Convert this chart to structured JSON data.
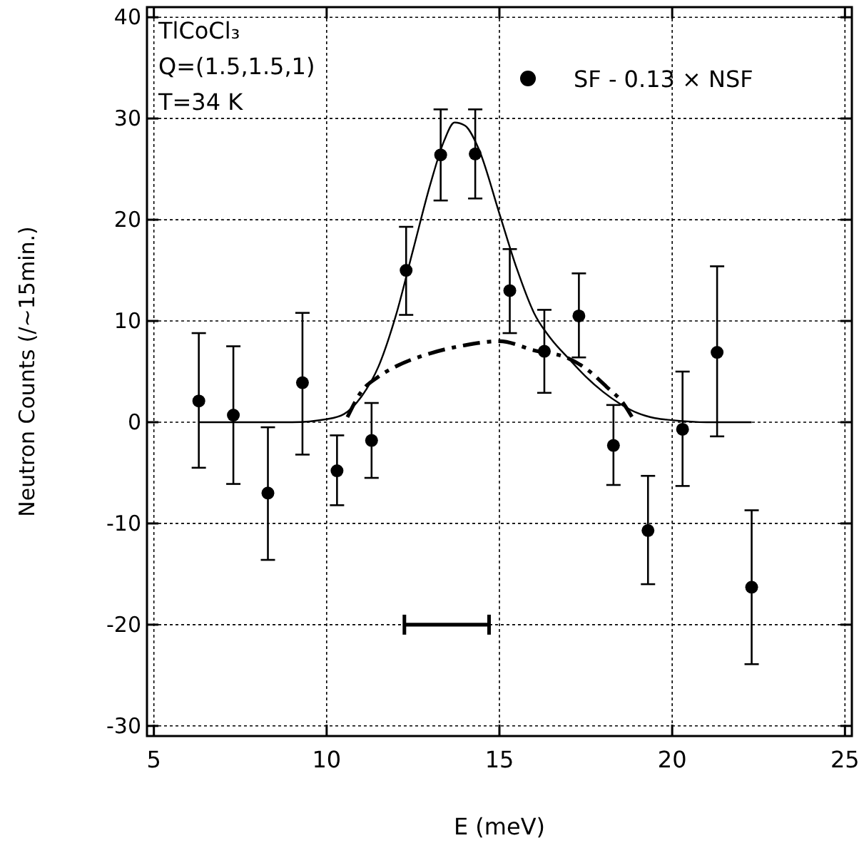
{
  "chart_data": {
    "type": "scatter",
    "xlabel": "E (meV)",
    "ylabel": "Neutron Counts (/~15min.)",
    "annotations": [
      "TlCoCl₃",
      "Q=(1.5,1.5,1)",
      "T=34 K"
    ],
    "xlim": [
      4.8,
      25.2
    ],
    "ylim": [
      -31,
      41
    ],
    "xticks": [
      5,
      10,
      15,
      20,
      25
    ],
    "yticks": [
      -30,
      -20,
      -10,
      0,
      10,
      20,
      30,
      40
    ],
    "grid": true,
    "legend": "top right",
    "series": [
      {
        "name": "SF - 0.13 × NSF",
        "color": "#000000",
        "marker": "circle",
        "x": [
          6.3,
          7.3,
          8.3,
          9.3,
          10.3,
          11.3,
          12.3,
          13.3,
          14.3,
          15.3,
          16.3,
          17.3,
          18.3,
          19.3,
          20.3,
          21.3,
          22.3
        ],
        "values": [
          2.1,
          0.7,
          -7.0,
          3.9,
          -4.8,
          -1.8,
          15.0,
          26.4,
          26.5,
          13.0,
          7.0,
          10.5,
          -2.3,
          -10.7,
          -0.7,
          6.9,
          -16.3
        ],
        "errors": [
          [
            -4.5,
            8.8
          ],
          [
            -6.1,
            7.5
          ],
          [
            -13.6,
            -0.5
          ],
          [
            -3.2,
            10.8
          ],
          [
            -8.2,
            -1.3
          ],
          [
            -5.5,
            1.9
          ],
          [
            10.6,
            19.3
          ],
          [
            21.9,
            30.9
          ],
          [
            22.1,
            30.9
          ],
          [
            8.8,
            17.1
          ],
          [
            2.9,
            11.1
          ],
          [
            6.4,
            14.7
          ],
          [
            -6.2,
            1.7
          ],
          [
            -16.0,
            -5.3
          ],
          [
            -6.3,
            5.0
          ],
          [
            -1.4,
            15.4
          ],
          [
            -23.9,
            -8.7
          ]
        ]
      },
      {
        "type": "line",
        "color": "#000000",
        "line_style": "solid",
        "marker": "none",
        "x": [
          6.3,
          9,
          10,
          10.5,
          11,
          11.5,
          12,
          12.5,
          13,
          13.4,
          13.7,
          14,
          14.4,
          15,
          15.5,
          16,
          16.5,
          17,
          17.5,
          18,
          18.5,
          19,
          19.5,
          20,
          21,
          22.3
        ],
        "values": [
          0,
          0,
          0.3,
          0.8,
          2.5,
          5.5,
          10.5,
          17,
          23.5,
          27.8,
          29.6,
          29.3,
          27,
          20.6,
          15.2,
          10.8,
          8.2,
          6.3,
          4.5,
          3,
          1.8,
          0.9,
          0.4,
          0.2,
          0,
          0
        ]
      },
      {
        "type": "line",
        "color": "#000000",
        "line_style": "dashed",
        "marker": "none",
        "x": [
          10.6,
          11,
          11.5,
          12,
          13,
          14,
          15,
          16,
          17,
          17.5,
          18.1,
          18.6,
          18.84
        ],
        "values": [
          0.5,
          3,
          4.5,
          5.5,
          6.8,
          7.6,
          8,
          7.1,
          6.3,
          5.3,
          3.5,
          1.8,
          0.5
        ]
      },
      {
        "type": "line",
        "color": "#000000",
        "line_style": "solid",
        "marker": "none",
        "x": [
          12.25,
          14.7
        ],
        "values": [
          -20,
          -20
        ]
      }
    ]
  }
}
